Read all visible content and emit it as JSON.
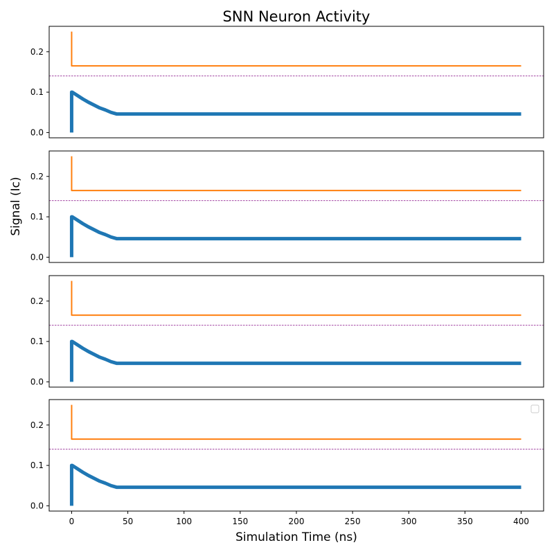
{
  "chart_data": {
    "type": "line",
    "title": "SNN Neuron Activity",
    "xlabel": "Simulation Time (ns)",
    "ylabel": "Signal (Ic)",
    "xlim": [
      -20,
      420
    ],
    "ylim": [
      -0.013,
      0.263
    ],
    "x_ticks": [
      0,
      50,
      100,
      150,
      200,
      250,
      300,
      350,
      400
    ],
    "y_ticks": [
      0.0,
      0.1,
      0.2
    ],
    "y_tick_labels": [
      "0.0",
      "0.1",
      "0.2"
    ],
    "grid": false,
    "legend": {
      "placement": "top-right",
      "entries": []
    },
    "colors": {
      "membrane": "#1f77b4",
      "output": "#ff7f0e",
      "threshold": "#800080"
    },
    "threshold": 0.14,
    "panels": [
      {
        "series": [
          {
            "role": "membrane",
            "x": [
              0,
              0,
              0.5,
              5,
              10,
              15,
              20,
              25,
              30,
              35,
              40,
              100,
              200,
              300,
              400
            ],
            "y": [
              0.0,
              0.1,
              0.1,
              0.092,
              0.083,
              0.075,
              0.068,
              0.061,
              0.056,
              0.05,
              0.046,
              0.046,
              0.046,
              0.046,
              0.046
            ]
          },
          {
            "role": "output",
            "x": [
              0,
              0,
              1,
              100,
              200,
              300,
              400
            ],
            "y": [
              0.25,
              0.165,
              0.165,
              0.165,
              0.165,
              0.165,
              0.165
            ]
          }
        ]
      },
      {
        "series": [
          {
            "role": "membrane",
            "x": [
              0,
              0,
              0.5,
              5,
              10,
              15,
              20,
              25,
              30,
              35,
              40,
              100,
              200,
              300,
              400
            ],
            "y": [
              0.0,
              0.1,
              0.1,
              0.092,
              0.083,
              0.075,
              0.068,
              0.061,
              0.056,
              0.05,
              0.046,
              0.046,
              0.046,
              0.046,
              0.046
            ]
          },
          {
            "role": "output",
            "x": [
              0,
              0,
              1,
              100,
              200,
              300,
              400
            ],
            "y": [
              0.25,
              0.165,
              0.165,
              0.165,
              0.165,
              0.165,
              0.165
            ]
          }
        ]
      },
      {
        "series": [
          {
            "role": "membrane",
            "x": [
              0,
              0,
              0.5,
              5,
              10,
              15,
              20,
              25,
              30,
              35,
              40,
              100,
              200,
              300,
              400
            ],
            "y": [
              0.0,
              0.1,
              0.1,
              0.092,
              0.083,
              0.075,
              0.068,
              0.061,
              0.056,
              0.05,
              0.046,
              0.046,
              0.046,
              0.046,
              0.046
            ]
          },
          {
            "role": "output",
            "x": [
              0,
              0,
              1,
              100,
              200,
              300,
              400
            ],
            "y": [
              0.25,
              0.165,
              0.165,
              0.165,
              0.165,
              0.165,
              0.165
            ]
          }
        ]
      },
      {
        "series": [
          {
            "role": "membrane",
            "x": [
              0,
              0,
              0.5,
              5,
              10,
              15,
              20,
              25,
              30,
              35,
              40,
              100,
              200,
              300,
              400
            ],
            "y": [
              0.0,
              0.1,
              0.1,
              0.092,
              0.083,
              0.075,
              0.068,
              0.061,
              0.056,
              0.05,
              0.046,
              0.046,
              0.046,
              0.046,
              0.046
            ]
          },
          {
            "role": "output",
            "x": [
              0,
              0,
              1,
              100,
              200,
              300,
              400
            ],
            "y": [
              0.25,
              0.165,
              0.165,
              0.165,
              0.165,
              0.165,
              0.165
            ]
          }
        ]
      }
    ]
  }
}
